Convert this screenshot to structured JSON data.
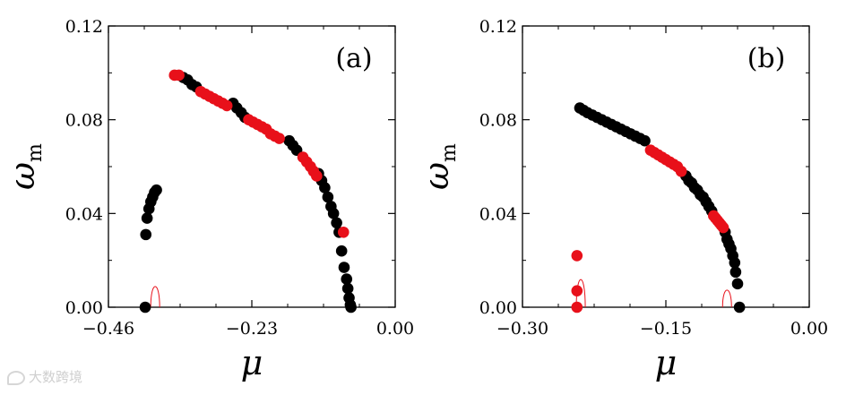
{
  "chart_data": [
    {
      "type": "scatter",
      "panel_label": "(a)",
      "title": "",
      "xlabel": "μ",
      "ylabel_symbol": "ω",
      "ylabel_subscript": "m",
      "xlim": [
        -0.46,
        0.0
      ],
      "ylim": [
        0.0,
        0.12
      ],
      "xticks": [
        -0.46,
        -0.23,
        0.0
      ],
      "xtick_labels": [
        "−0.46",
        "−0.23",
        "0.00"
      ],
      "yticks": [
        0.0,
        0.04,
        0.08,
        0.12
      ],
      "ytick_labels": [
        "0.00",
        "0.04",
        "0.08",
        "0.12"
      ],
      "series": [
        {
          "name": "black points",
          "color": "#000000",
          "x": [
            -0.401,
            -0.4,
            -0.398,
            -0.395,
            -0.392,
            -0.389,
            -0.386,
            -0.383,
            -0.34,
            -0.333,
            -0.326,
            -0.319,
            -0.26,
            -0.254,
            -0.247,
            -0.241,
            -0.17,
            -0.164,
            -0.158,
            -0.123,
            -0.118,
            -0.113,
            -0.108,
            -0.103,
            -0.099,
            -0.094,
            -0.09,
            -0.086,
            -0.082,
            -0.078,
            -0.076,
            -0.074,
            -0.072,
            -0.071
          ],
          "y": [
            0.0,
            0.031,
            0.038,
            0.042,
            0.045,
            0.047,
            0.049,
            0.05,
            0.098,
            0.097,
            0.095,
            0.094,
            0.087,
            0.085,
            0.083,
            0.081,
            0.071,
            0.069,
            0.067,
            0.057,
            0.054,
            0.051,
            0.047,
            0.043,
            0.04,
            0.036,
            0.032,
            0.024,
            0.017,
            0.012,
            0.008,
            0.004,
            0.001,
            0.0
          ]
        },
        {
          "name": "red points",
          "color": "#e8101a",
          "x": [
            -0.354,
            -0.347,
            -0.312,
            -0.305,
            -0.298,
            -0.291,
            -0.284,
            -0.277,
            -0.27,
            -0.235,
            -0.228,
            -0.221,
            -0.214,
            -0.207,
            -0.2,
            -0.193,
            -0.186,
            -0.148,
            -0.142,
            -0.136,
            -0.131,
            -0.126,
            -0.083
          ],
          "y": [
            0.099,
            0.099,
            0.092,
            0.091,
            0.09,
            0.089,
            0.088,
            0.087,
            0.086,
            0.08,
            0.079,
            0.078,
            0.077,
            0.076,
            0.074,
            0.073,
            0.072,
            0.064,
            0.062,
            0.06,
            0.058,
            0.056,
            0.032
          ]
        }
      ],
      "annotations": [
        {
          "type": "thin red curve",
          "x_center": -0.385,
          "peak_y": 0.011
        }
      ]
    },
    {
      "type": "scatter",
      "panel_label": "(b)",
      "title": "",
      "xlabel": "μ",
      "ylabel_symbol": "ω",
      "ylabel_subscript": "m",
      "xlim": [
        -0.3,
        0.0
      ],
      "ylim": [
        0.0,
        0.12
      ],
      "xticks": [
        -0.3,
        -0.15,
        0.0
      ],
      "xtick_labels": [
        "−0.30",
        "−0.15",
        "0.00"
      ],
      "yticks": [
        0.0,
        0.04,
        0.08,
        0.12
      ],
      "ytick_labels": [
        "0.00",
        "0.04",
        "0.08",
        "0.12"
      ],
      "series": [
        {
          "name": "black points",
          "color": "#000000",
          "x": [
            -0.24,
            -0.236,
            -0.232,
            -0.227,
            -0.222,
            -0.217,
            -0.212,
            -0.207,
            -0.202,
            -0.197,
            -0.192,
            -0.187,
            -0.182,
            -0.177,
            -0.172,
            -0.129,
            -0.126,
            -0.123,
            -0.12,
            -0.117,
            -0.114,
            -0.111,
            -0.108,
            -0.105,
            -0.102,
            -0.088,
            -0.086,
            -0.084,
            -0.082,
            -0.08,
            -0.078,
            -0.077,
            -0.075,
            -0.073
          ],
          "y": [
            0.085,
            0.084,
            0.083,
            0.082,
            0.081,
            0.08,
            0.079,
            0.078,
            0.077,
            0.076,
            0.075,
            0.074,
            0.073,
            0.072,
            0.071,
            0.056,
            0.054,
            0.053,
            0.051,
            0.05,
            0.048,
            0.047,
            0.045,
            0.043,
            0.041,
            0.032,
            0.029,
            0.027,
            0.025,
            0.022,
            0.019,
            0.015,
            0.01,
            0.0
          ]
        },
        {
          "name": "red points",
          "color": "#e8101a",
          "x": [
            -0.243,
            -0.243,
            -0.243,
            -0.166,
            -0.162,
            -0.158,
            -0.154,
            -0.15,
            -0.146,
            -0.142,
            -0.138,
            -0.134,
            -0.1,
            -0.098,
            -0.096,
            -0.094,
            -0.092,
            -0.09
          ],
          "y": [
            0.022,
            0.007,
            0.0,
            0.067,
            0.066,
            0.065,
            0.064,
            0.063,
            0.062,
            0.061,
            0.06,
            0.058,
            0.039,
            0.038,
            0.037,
            0.036,
            0.035,
            0.034
          ]
        }
      ],
      "annotations": [
        {
          "type": "thin red curve",
          "x_center": -0.239,
          "peak_y": 0.015
        },
        {
          "type": "thin red curve",
          "x_center": -0.086,
          "peak_y": 0.009
        }
      ]
    }
  ],
  "watermark": "大数跨境"
}
